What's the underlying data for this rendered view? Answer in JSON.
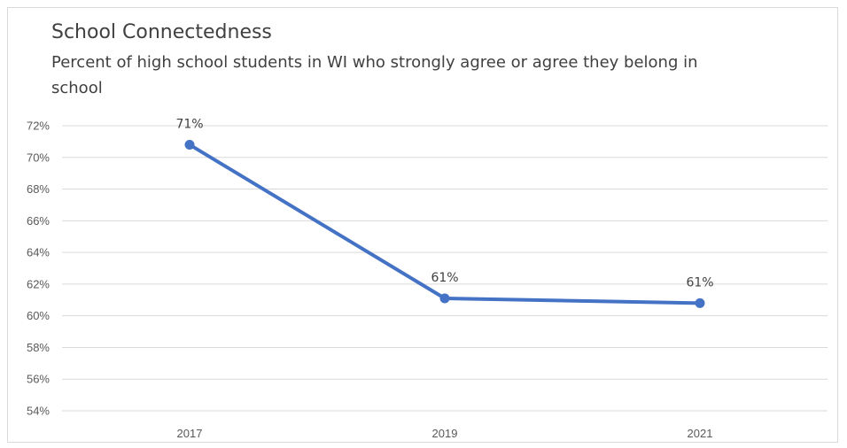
{
  "chart_data": {
    "type": "line",
    "title": "School Connectedness",
    "subtitle": "Percent of high school students in WI who strongly agree or agree they belong in school",
    "categories": [
      "2017",
      "2019",
      "2021"
    ],
    "series": [
      {
        "values": [
          70.8,
          61.1,
          60.8
        ],
        "labels": [
          "71%",
          "61%",
          "61%"
        ]
      }
    ],
    "ylim": [
      54,
      72
    ],
    "yticks": [
      "72%",
      "70%",
      "68%",
      "66%",
      "64%",
      "62%",
      "60%",
      "58%",
      "56%",
      "54%"
    ],
    "ystep": 2,
    "grid": true,
    "legend": "none",
    "line_color": "#4472C4"
  }
}
